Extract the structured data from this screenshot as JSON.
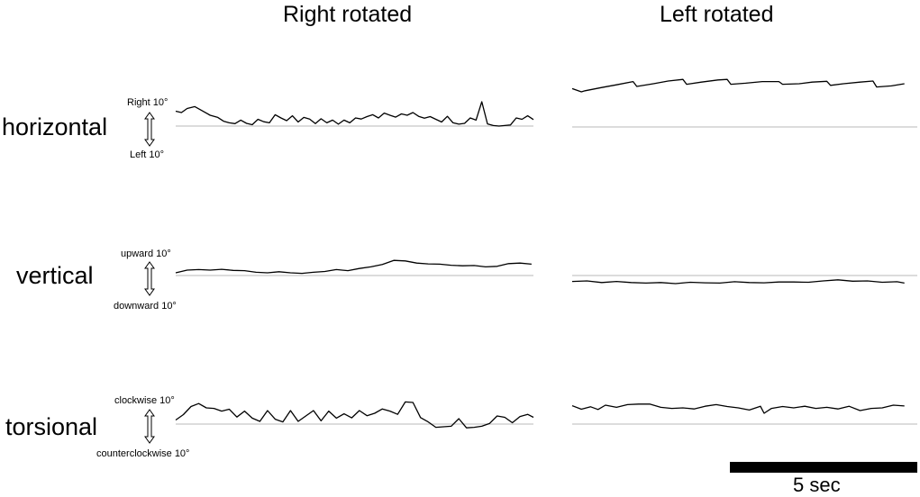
{
  "columns": [
    "Right rotated",
    "Left rotated"
  ],
  "rows": [
    {
      "label": "horizontal",
      "pos_label": "Right 10°",
      "neg_label": "Left 10°"
    },
    {
      "label": "vertical",
      "pos_label": "upward 10°",
      "neg_label": "downward 10°"
    },
    {
      "label": "torsional",
      "pos_label": "clockwise 10°",
      "neg_label": "counterclockwise 10°"
    }
  ],
  "scale_bar": {
    "label": "5 sec",
    "duration_s": 5
  },
  "chart_data": {
    "type": "line",
    "title": "",
    "unit": "deg",
    "traces": [
      {
        "panel": "Right rotated / horizontal",
        "x": [
          0,
          0.3,
          0.6,
          1.0,
          1.4,
          1.8,
          2.2,
          2.5,
          2.8,
          3.1,
          3.4,
          3.7,
          4.0,
          4.3,
          4.6,
          4.9,
          5.2,
          5.5,
          5.8,
          6.1,
          6.4,
          6.7,
          7.0,
          7.3,
          7.6,
          7.9,
          8.2,
          8.5,
          8.8,
          9.1,
          9.4,
          9.7,
          10.0,
          10.3,
          10.6,
          10.9,
          11.2,
          11.5,
          11.8,
          12.1,
          12.4,
          12.7,
          13.0,
          13.3,
          13.6,
          13.9,
          14.2,
          14.5,
          14.8,
          15.1,
          15.4,
          15.7,
          16.0,
          16.3,
          16.6,
          16.9,
          17.2,
          17.5,
          17.8,
          18.1,
          18.4,
          18.7
        ],
        "y": [
          5.5,
          5.0,
          6.5,
          7.2,
          5.6,
          4.0,
          3.2,
          1.8,
          1.2,
          0.9,
          2.2,
          1.0,
          0.5,
          2.5,
          1.6,
          1.2,
          4.2,
          3.0,
          2.0,
          3.8,
          1.5,
          3.2,
          2.6,
          0.9,
          2.7,
          1.2,
          2.2,
          0.7,
          2.2,
          1.2,
          3.0,
          2.6,
          3.5,
          4.2,
          3.0,
          4.8,
          4.0,
          3.3,
          4.5,
          4.0,
          5.0,
          3.6,
          2.9,
          3.5,
          2.5,
          1.5,
          3.6,
          1.2,
          0.7,
          1.0,
          3.0,
          2.2,
          9.0,
          0.8,
          0.2,
          0.0,
          0.2,
          0.4,
          3.0,
          2.5,
          3.8,
          2.4
        ]
      },
      {
        "panel": "Right rotated / vertical",
        "x": [
          0,
          0.6,
          1.2,
          1.8,
          2.4,
          3.0,
          3.6,
          4.2,
          4.8,
          5.4,
          6.0,
          6.6,
          7.2,
          7.8,
          8.4,
          9.0,
          9.6,
          10.2,
          10.8,
          11.4,
          12.0,
          12.6,
          13.2,
          13.8,
          14.4,
          15.0,
          15.6,
          16.2,
          16.8,
          17.4,
          18.0,
          18.6
        ],
        "y": [
          1.0,
          2.0,
          2.2,
          2.0,
          2.3,
          1.9,
          1.8,
          1.2,
          1.0,
          1.4,
          1.0,
          0.8,
          1.2,
          1.5,
          2.2,
          1.8,
          2.6,
          3.2,
          4.1,
          5.6,
          5.4,
          4.6,
          4.3,
          4.2,
          3.8,
          3.6,
          3.7,
          3.2,
          3.4,
          4.4,
          4.6,
          4.2
        ]
      },
      {
        "panel": "Right rotated / torsional",
        "x": [
          0,
          0.4,
          0.8,
          1.2,
          1.6,
          2.0,
          2.4,
          2.8,
          3.2,
          3.6,
          4.0,
          4.4,
          4.8,
          5.2,
          5.6,
          6.0,
          6.4,
          6.8,
          7.2,
          7.6,
          8.0,
          8.4,
          8.8,
          9.2,
          9.6,
          10.0,
          10.4,
          10.8,
          11.2,
          11.6,
          12.0,
          12.4,
          12.8,
          13.2,
          13.6,
          14.0,
          14.4,
          14.8,
          15.2,
          15.6,
          16.0,
          16.4,
          16.8,
          17.2,
          17.6,
          18.0,
          18.4,
          18.8
        ],
        "y": [
          1.5,
          3.5,
          6.5,
          7.6,
          6.0,
          5.8,
          4.8,
          5.5,
          2.6,
          4.8,
          2.2,
          1.0,
          5.0,
          1.8,
          0.8,
          5.0,
          1.0,
          3.0,
          5.0,
          1.2,
          4.8,
          2.2,
          3.8,
          2.3,
          5.0,
          3.1,
          4.0,
          5.6,
          4.8,
          3.6,
          8.2,
          8.0,
          2.4,
          0.8,
          -1.2,
          -1.0,
          -0.8,
          2.0,
          -1.4,
          -1.2,
          -0.8,
          0.2,
          3.0,
          2.5,
          0.5,
          2.8,
          3.6,
          2.5
        ]
      },
      {
        "panel": "Left rotated / horizontal",
        "x": [
          0,
          0.5,
          0.7,
          1.6,
          2.4,
          3.3,
          3.5,
          4.4,
          5.2,
          6.0,
          6.2,
          7.0,
          7.9,
          8.4,
          8.6,
          9.4,
          10.3,
          11.2,
          11.4,
          12.3,
          13.0,
          13.8,
          14.0,
          14.7,
          15.6,
          16.3,
          16.5,
          17.3,
          18.0
        ],
        "y": [
          14.2,
          13.0,
          13.4,
          14.6,
          15.6,
          16.8,
          15.0,
          16.0,
          17.0,
          17.6,
          15.8,
          16.6,
          17.4,
          17.6,
          15.8,
          16.2,
          16.8,
          16.8,
          15.8,
          16.0,
          16.6,
          16.9,
          15.4,
          16.0,
          16.6,
          17.0,
          14.8,
          15.2,
          16.0
        ]
      },
      {
        "panel": "Left rotated / vertical",
        "x": [
          0,
          0.8,
          1.6,
          2.4,
          3.2,
          4.0,
          4.8,
          5.6,
          6.4,
          7.2,
          8.0,
          8.8,
          9.6,
          10.4,
          11.2,
          12.0,
          12.8,
          13.6,
          14.4,
          15.2,
          16.0,
          16.8,
          17.6,
          18.0
        ],
        "y": [
          -2.2,
          -2.0,
          -2.6,
          -2.2,
          -2.6,
          -2.8,
          -2.6,
          -3.0,
          -2.5,
          -2.7,
          -2.8,
          -2.3,
          -2.6,
          -2.7,
          -2.4,
          -2.4,
          -2.5,
          -2.0,
          -1.6,
          -2.1,
          -2.0,
          -2.5,
          -2.3,
          -2.8
        ]
      },
      {
        "panel": "Left rotated / torsional",
        "x": [
          0,
          0.5,
          1.0,
          1.4,
          1.8,
          2.4,
          3.0,
          3.6,
          4.2,
          4.8,
          5.4,
          6.0,
          6.6,
          7.2,
          7.8,
          8.4,
          9.0,
          9.6,
          10.2,
          10.4,
          10.8,
          11.4,
          12.0,
          12.6,
          13.2,
          13.8,
          14.4,
          15.0,
          15.6,
          16.2,
          16.8,
          17.4,
          18.0
        ],
        "y": [
          6.8,
          5.5,
          6.4,
          5.4,
          7.0,
          6.2,
          7.2,
          7.4,
          7.4,
          6.2,
          5.8,
          6.0,
          5.6,
          6.6,
          7.2,
          6.5,
          6.0,
          5.2,
          6.6,
          4.0,
          5.8,
          6.5,
          6.0,
          6.6,
          5.8,
          6.2,
          5.6,
          6.6,
          5.0,
          5.8,
          6.0,
          7.0,
          6.7
        ]
      }
    ]
  }
}
